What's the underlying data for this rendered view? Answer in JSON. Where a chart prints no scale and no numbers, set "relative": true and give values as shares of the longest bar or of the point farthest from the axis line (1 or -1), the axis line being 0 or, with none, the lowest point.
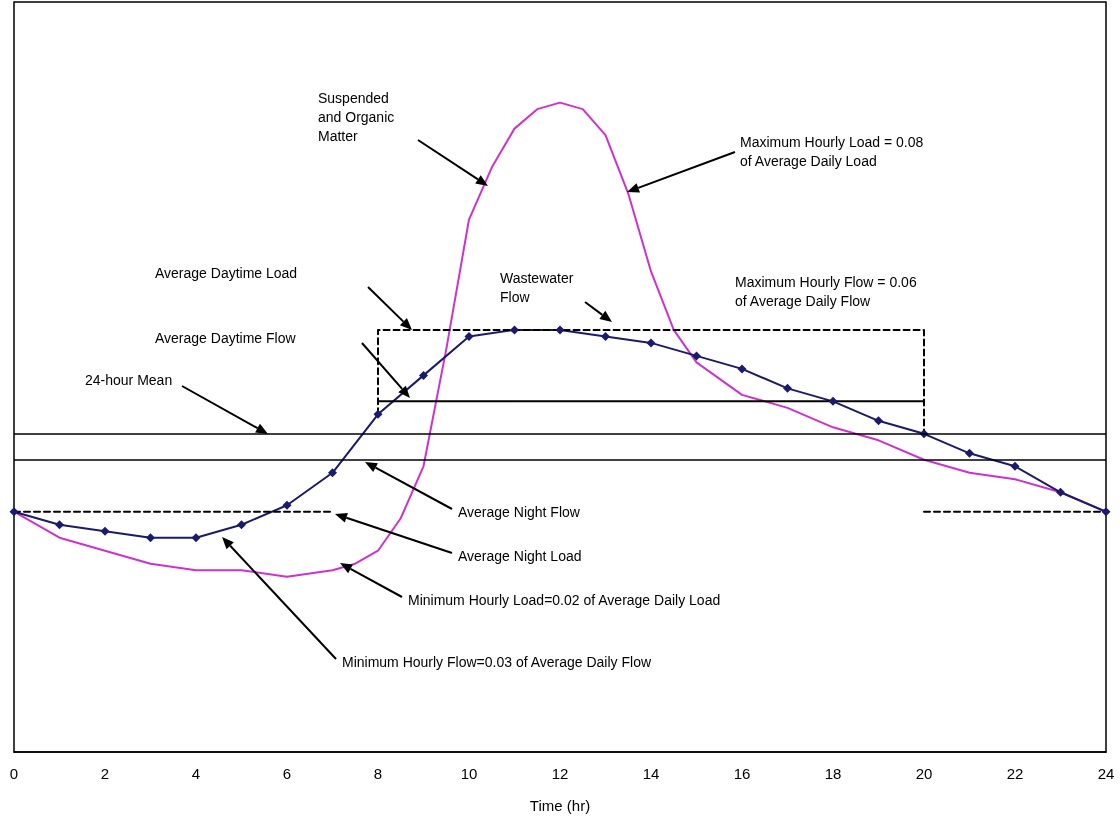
{
  "chart_data": {
    "type": "line",
    "relative": true,
    "xlabel": "Time (hr)",
    "xlim": [
      0,
      24
    ],
    "xticks": [
      0,
      2,
      4,
      6,
      8,
      10,
      12,
      14,
      16,
      18,
      20,
      22,
      24
    ],
    "grid": false,
    "series": [
      {
        "color": "#cc33cc",
        "marker": "none",
        "x": [
          0,
          1,
          2,
          3,
          4,
          5,
          6,
          7,
          7.5,
          8,
          8.5,
          9,
          9.5,
          10,
          10.5,
          11,
          11.5,
          12,
          12.5,
          13,
          13.5,
          14,
          14.5,
          15,
          16,
          17,
          18,
          19,
          20,
          21,
          22,
          23,
          24
        ],
        "values": [
          0.37,
          0.33,
          0.31,
          0.29,
          0.28,
          0.28,
          0.27,
          0.28,
          0.29,
          0.31,
          0.36,
          0.44,
          0.62,
          0.82,
          0.9,
          0.96,
          0.99,
          1,
          0.99,
          0.95,
          0.86,
          0.74,
          0.65,
          0.6,
          0.55,
          0.53,
          0.5,
          0.48,
          0.45,
          0.43,
          0.42,
          0.4,
          0.37
        ]
      },
      {
        "color": "#1a1a6e",
        "marker": "diamond",
        "x": [
          0,
          1,
          2,
          3,
          4,
          5,
          6,
          7,
          8,
          9,
          10,
          11,
          12,
          13,
          14,
          15,
          16,
          17,
          18,
          19,
          20,
          21,
          22,
          23,
          24
        ],
        "values": [
          0.37,
          0.35,
          0.34,
          0.33,
          0.33,
          0.35,
          0.38,
          0.43,
          0.52,
          0.58,
          0.64,
          0.65,
          0.65,
          0.64,
          0.63,
          0.61,
          0.59,
          0.56,
          0.54,
          0.51,
          0.49,
          0.46,
          0.44,
          0.4,
          0.37
        ]
      },
      {
        "color": "#000000",
        "marker": "none",
        "line_style": "solid",
        "x": [
          8,
          20
        ],
        "values": [
          0.54,
          0.54
        ]
      },
      {
        "color": "#000000",
        "marker": "none",
        "line_style": "dashed",
        "x": [
          8,
          8,
          20,
          20
        ],
        "values": [
          0.52,
          0.65,
          0.65,
          0.49
        ]
      },
      {
        "color": "#000000",
        "marker": "none",
        "line_style": "dashed",
        "x": [
          0,
          7,
          7.5,
          20,
          24
        ],
        "values": [
          0.37,
          0.37,
          null,
          0.37,
          0.37
        ]
      }
    ],
    "ref_lines": [
      {
        "axis": "y",
        "value": 0.49,
        "color": "#000000",
        "line_style": "solid"
      },
      {
        "axis": "y",
        "value": 0.45,
        "color": "#000000",
        "line_style": "solid"
      }
    ],
    "annotations": [
      "Suspended\nand Organic\nMatter",
      "Maximum Hourly Load = 0.08\nof Average Daily Load",
      "Maximum Hourly Flow = 0.06\nof Average Daily Flow",
      "Wastewater\nFlow",
      "Average Daytime Load",
      "Average Daytime Flow",
      "24-hour Mean",
      "Average Night Flow",
      "Average Night Load",
      "Minimum Hourly Load=0.02 of Average Daily Load",
      "Minimum Hourly Flow=0.03 of Average Daily Flow"
    ]
  }
}
